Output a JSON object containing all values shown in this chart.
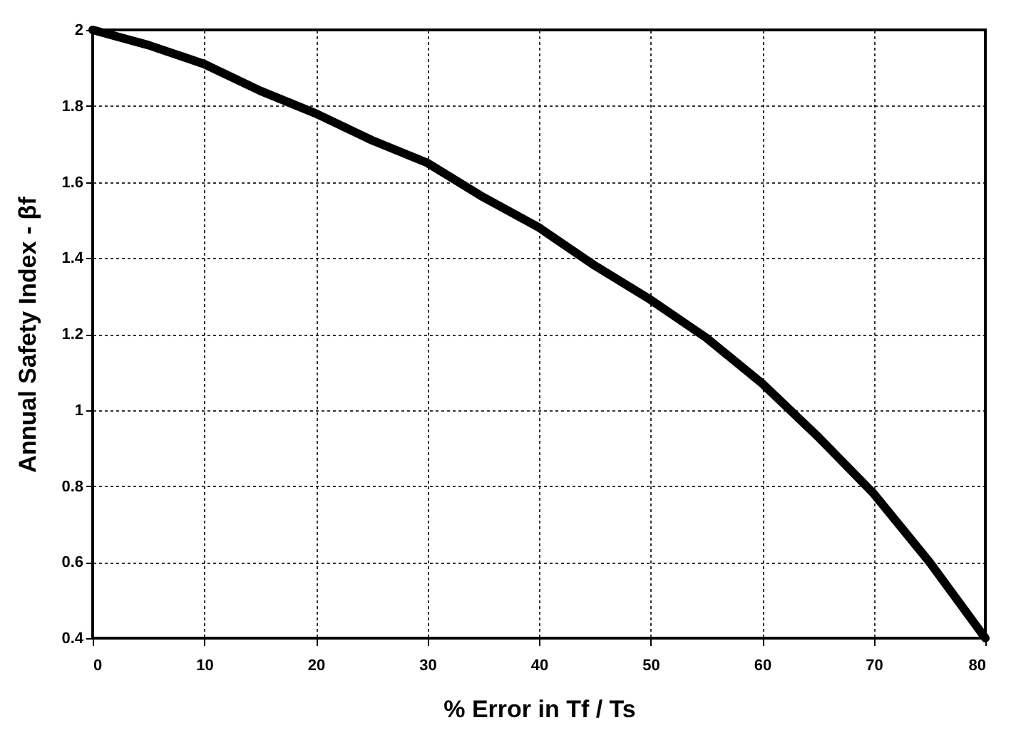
{
  "chart_data": {
    "type": "line",
    "xlabel": "% Error in Tf / Ts",
    "ylabel": "Annual Safety Index - βf",
    "x": [
      0,
      5,
      10,
      15,
      20,
      25,
      30,
      35,
      40,
      45,
      50,
      55,
      60,
      65,
      70,
      75,
      80
    ],
    "series": [
      {
        "color": "#000000",
        "values": [
          2.0,
          1.96,
          1.91,
          1.84,
          1.78,
          1.71,
          1.65,
          1.56,
          1.48,
          1.38,
          1.29,
          1.19,
          1.07,
          0.93,
          0.78,
          0.6,
          0.4
        ]
      }
    ],
    "xlim": [
      0,
      80
    ],
    "xticks": [
      0,
      10,
      20,
      30,
      40,
      50,
      60,
      70,
      80
    ],
    "ylim": [
      0.4,
      2
    ],
    "yticks": [
      0.4,
      0.6,
      0.8,
      1,
      1.2,
      1.4,
      1.6,
      1.8,
      2
    ],
    "grid": true,
    "marker": "none",
    "line_style": "solid"
  }
}
